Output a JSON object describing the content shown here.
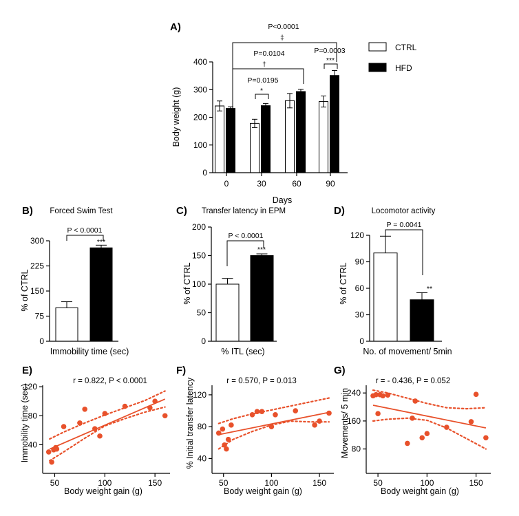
{
  "chart_data": [
    {
      "panel": "A)",
      "type": "bar",
      "title": "",
      "xlabel": "Days",
      "ylabel": "Body weight (g)",
      "categories": [
        "0",
        "30",
        "60",
        "90"
      ],
      "ylim": [
        0,
        400
      ],
      "yticks": [
        "0",
        "100",
        "200",
        "300",
        "400"
      ],
      "series": [
        {
          "name": "CTRL",
          "color": "#ffffff",
          "values": [
            241,
            178,
            260,
            257
          ],
          "errors": [
            18,
            15,
            26,
            20
          ]
        },
        {
          "name": "HFD",
          "color": "#000000",
          "values": [
            232,
            242,
            293,
            351
          ],
          "errors": [
            6,
            8,
            8,
            18
          ]
        }
      ],
      "annotations": [
        {
          "text": "P=0.0195",
          "stars": "*"
        },
        {
          "text": "P=0.0104",
          "stars": "†"
        },
        {
          "text": "P<0.0001",
          "stars": "‡"
        },
        {
          "text": "P=0.0003",
          "stars": "***"
        }
      ]
    },
    {
      "panel": "B)",
      "type": "bar",
      "title": "Forced Swim Test",
      "xlabel": "Immobility time (sec)",
      "ylabel": "% of CTRL",
      "ylim": [
        0,
        300
      ],
      "yticks": [
        "0",
        "75",
        "150",
        "225",
        "300"
      ],
      "values": [
        100,
        279
      ],
      "errors": [
        18,
        8
      ],
      "colors": [
        "#ffffff",
        "#000000"
      ],
      "p_text": "P < 0.0001",
      "stars": "***"
    },
    {
      "panel": "C)",
      "type": "bar",
      "title": "Transfer latency in EPM",
      "xlabel": "% ITL (sec)",
      "ylabel": "% of CTRL",
      "ylim": [
        0,
        200
      ],
      "yticks": [
        "0",
        "50",
        "100",
        "150",
        "200"
      ],
      "values": [
        100,
        150
      ],
      "errors": [
        10,
        3
      ],
      "colors": [
        "#ffffff",
        "#000000"
      ],
      "p_text": "P < 0.0001",
      "stars": "***"
    },
    {
      "panel": "D)",
      "type": "bar",
      "title": "Locomotor activity",
      "xlabel": "No. of movement/ 5min",
      "ylabel": "% of CTRL",
      "ylim": [
        0,
        120
      ],
      "yticks": [
        "0",
        "30",
        "60",
        "90",
        "120"
      ],
      "values": [
        100,
        47
      ],
      "errors": [
        19,
        8
      ],
      "colors": [
        "#ffffff",
        "#000000"
      ],
      "p_text": "P = 0.0041",
      "stars": "**"
    },
    {
      "panel": "E)",
      "type": "scatter",
      "stat_text": "r = 0.822, P < 0.0001",
      "xlabel": "Body weight gain (g)",
      "ylabel": "Immobility time (sec)",
      "xlim": [
        38,
        165
      ],
      "ylim": [
        10,
        122
      ],
      "xticks": [
        50,
        100,
        150
      ],
      "yticks": [
        40,
        80,
        120
      ],
      "color": "#e8512b",
      "fit": {
        "x": [
          45,
          160
        ],
        "y": [
          34,
          103
        ]
      },
      "ci_upper": [
        [
          45,
          48
        ],
        [
          60,
          58
        ],
        [
          80,
          70
        ],
        [
          100,
          81
        ],
        [
          120,
          91
        ],
        [
          140,
          101
        ],
        [
          160,
          114
        ]
      ],
      "ci_lower": [
        [
          45,
          18
        ],
        [
          60,
          31
        ],
        [
          80,
          49
        ],
        [
          100,
          66
        ],
        [
          120,
          76
        ],
        [
          140,
          85
        ],
        [
          160,
          92
        ]
      ],
      "points": [
        [
          44,
          30
        ],
        [
          47,
          16
        ],
        [
          49,
          33
        ],
        [
          51,
          36
        ],
        [
          52,
          34
        ],
        [
          59,
          65
        ],
        [
          75,
          70
        ],
        [
          80,
          89
        ],
        [
          90,
          62
        ],
        [
          95,
          52
        ],
        [
          100,
          83
        ],
        [
          120,
          93
        ],
        [
          145,
          91
        ],
        [
          150,
          100
        ],
        [
          160,
          80
        ]
      ]
    },
    {
      "panel": "F)",
      "type": "scatter",
      "stat_text": "r = 0.570, P = 0.013",
      "xlabel": "Body weight gain (g)",
      "ylabel": "% Initial transfer latency",
      "xlim": [
        38,
        165
      ],
      "ylim": [
        30,
        132
      ],
      "xticks": [
        50,
        100,
        150
      ],
      "yticks": [
        40,
        80,
        120
      ],
      "color": "#e8512b",
      "fit": {
        "x": [
          45,
          160
        ],
        "y": [
          70,
          98
        ]
      },
      "ci_upper": [
        [
          45,
          84
        ],
        [
          60,
          90
        ],
        [
          80,
          96
        ],
        [
          100,
          101
        ],
        [
          120,
          106
        ],
        [
          140,
          111
        ],
        [
          160,
          116
        ]
      ],
      "ci_lower": [
        [
          45,
          52
        ],
        [
          60,
          64
        ],
        [
          80,
          74
        ],
        [
          100,
          82
        ],
        [
          120,
          87
        ],
        [
          140,
          86
        ],
        [
          160,
          86
        ]
      ],
      "points": [
        [
          45,
          72
        ],
        [
          49,
          77
        ],
        [
          51,
          57
        ],
        [
          53,
          52
        ],
        [
          55,
          64
        ],
        [
          58,
          82
        ],
        [
          80,
          95
        ],
        [
          85,
          99
        ],
        [
          90,
          99
        ],
        [
          100,
          80
        ],
        [
          104,
          95
        ],
        [
          125,
          100
        ],
        [
          145,
          82
        ],
        [
          150,
          87
        ],
        [
          160,
          97
        ]
      ]
    },
    {
      "panel": "G)",
      "type": "scatter",
      "stat_text": "r = - 0.436, P = 0.052",
      "xlabel": "Body weight gain (g)",
      "ylabel": "Movements/ 5 min",
      "xlim": [
        38,
        165
      ],
      "ylim": [
        30,
        262
      ],
      "xticks": [
        50,
        100,
        150
      ],
      "yticks": [
        80,
        160,
        240
      ],
      "color": "#e8512b",
      "fit": {
        "x": [
          45,
          160
        ],
        "y": [
          205,
          140
        ]
      },
      "ci_upper": [
        [
          45,
          248
        ],
        [
          60,
          240
        ],
        [
          80,
          225
        ],
        [
          100,
          210
        ],
        [
          120,
          198
        ],
        [
          140,
          195
        ],
        [
          160,
          198
        ]
      ],
      "ci_lower": [
        [
          45,
          160
        ],
        [
          60,
          165
        ],
        [
          80,
          168
        ],
        [
          100,
          162
        ],
        [
          120,
          140
        ],
        [
          140,
          110
        ],
        [
          160,
          80
        ]
      ],
      "points": [
        [
          45,
          232
        ],
        [
          48,
          235
        ],
        [
          50,
          181
        ],
        [
          52,
          235
        ],
        [
          55,
          232
        ],
        [
          60,
          234
        ],
        [
          80,
          96
        ],
        [
          85,
          168
        ],
        [
          88,
          217
        ],
        [
          95,
          112
        ],
        [
          100,
          124
        ],
        [
          120,
          142
        ],
        [
          145,
          158
        ],
        [
          150,
          236
        ],
        [
          160,
          112
        ]
      ]
    }
  ]
}
